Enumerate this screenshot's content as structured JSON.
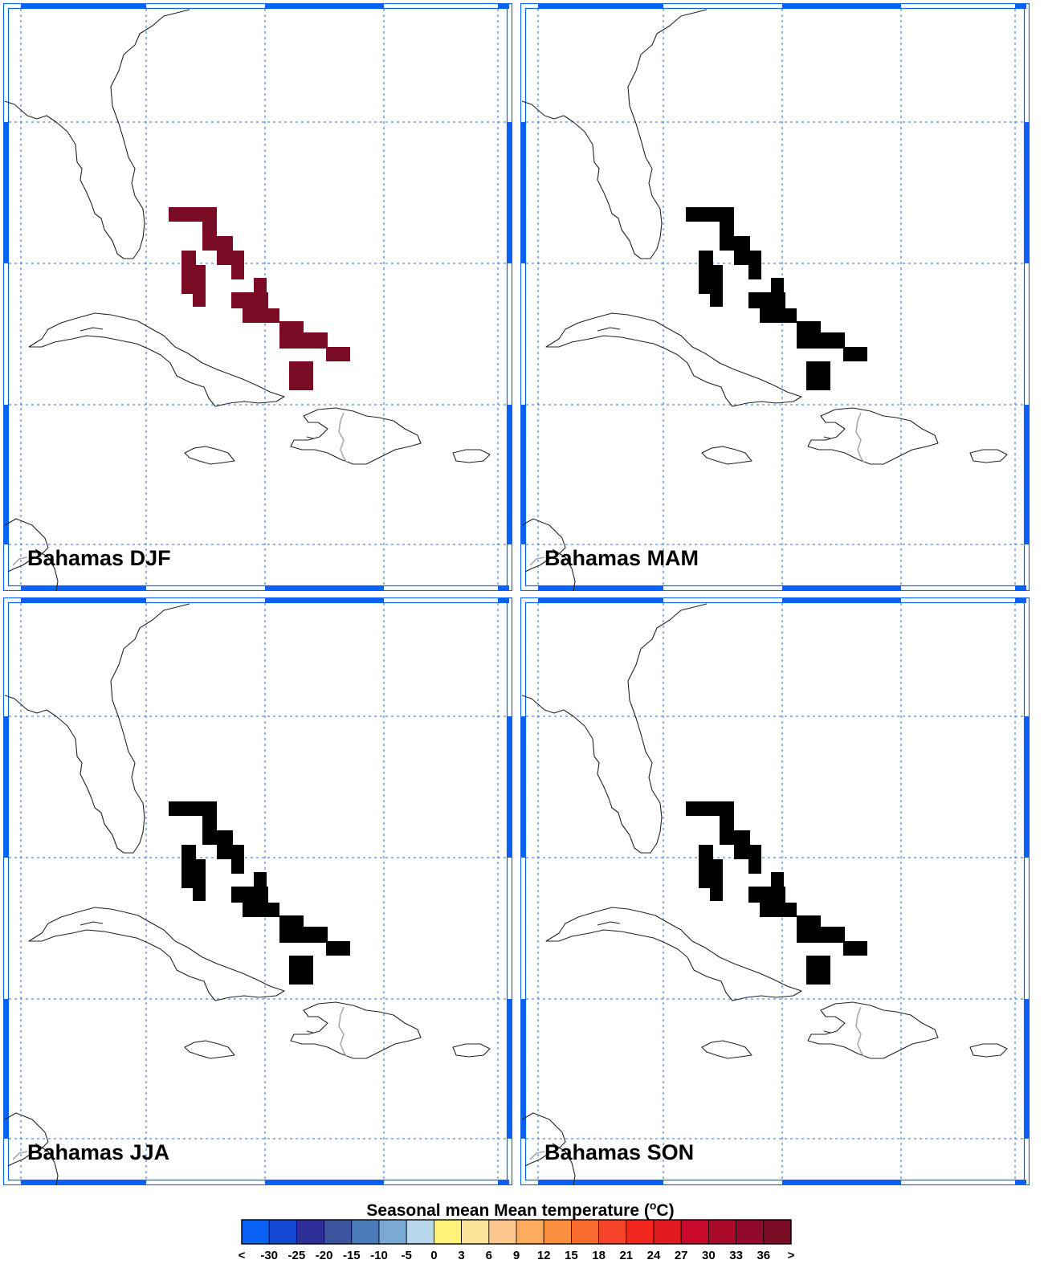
{
  "panels": [
    {
      "title": "Bahamas DJF",
      "value_bin": 19
    },
    {
      "title": "Bahamas MAM",
      "value_bin": 20
    },
    {
      "title": "Bahamas JJA",
      "value_bin": 21
    },
    {
      "title": "Bahamas SON",
      "value_bin": 20
    }
  ],
  "colorbar": {
    "title_prefix": "Seasonal mean Mean temperature (",
    "title_sup": "o",
    "title_suffix": "C)",
    "tick_labels": [
      "<",
      "-30",
      "-25",
      "-20",
      "-15",
      "-10",
      "-5",
      "0",
      "3",
      "6",
      "9",
      "12",
      "15",
      "18",
      "21",
      "24",
      "27",
      "30",
      "33",
      "36",
      ">"
    ],
    "colors": [
      "#0a62f5",
      "#1448d2",
      "#2d2f96",
      "#3a559e",
      "#4a7ab8",
      "#79a8d4",
      "#b6d8ea",
      "#fff27a",
      "#fde29a",
      "#fcc88f",
      "#fbaa5e",
      "#fb8e3f",
      "#f86a2e",
      "#f54429",
      "#f0261f",
      "#e11a1f",
      "#c7082a",
      "#a80a27",
      "#920a2b",
      "#790b24"
    ]
  },
  "colors": {
    "frame_blue": "#0a62f5",
    "grid_blue": "#1f6fe8",
    "coast": "#222222",
    "border_gray": "#aaaaaa"
  }
}
